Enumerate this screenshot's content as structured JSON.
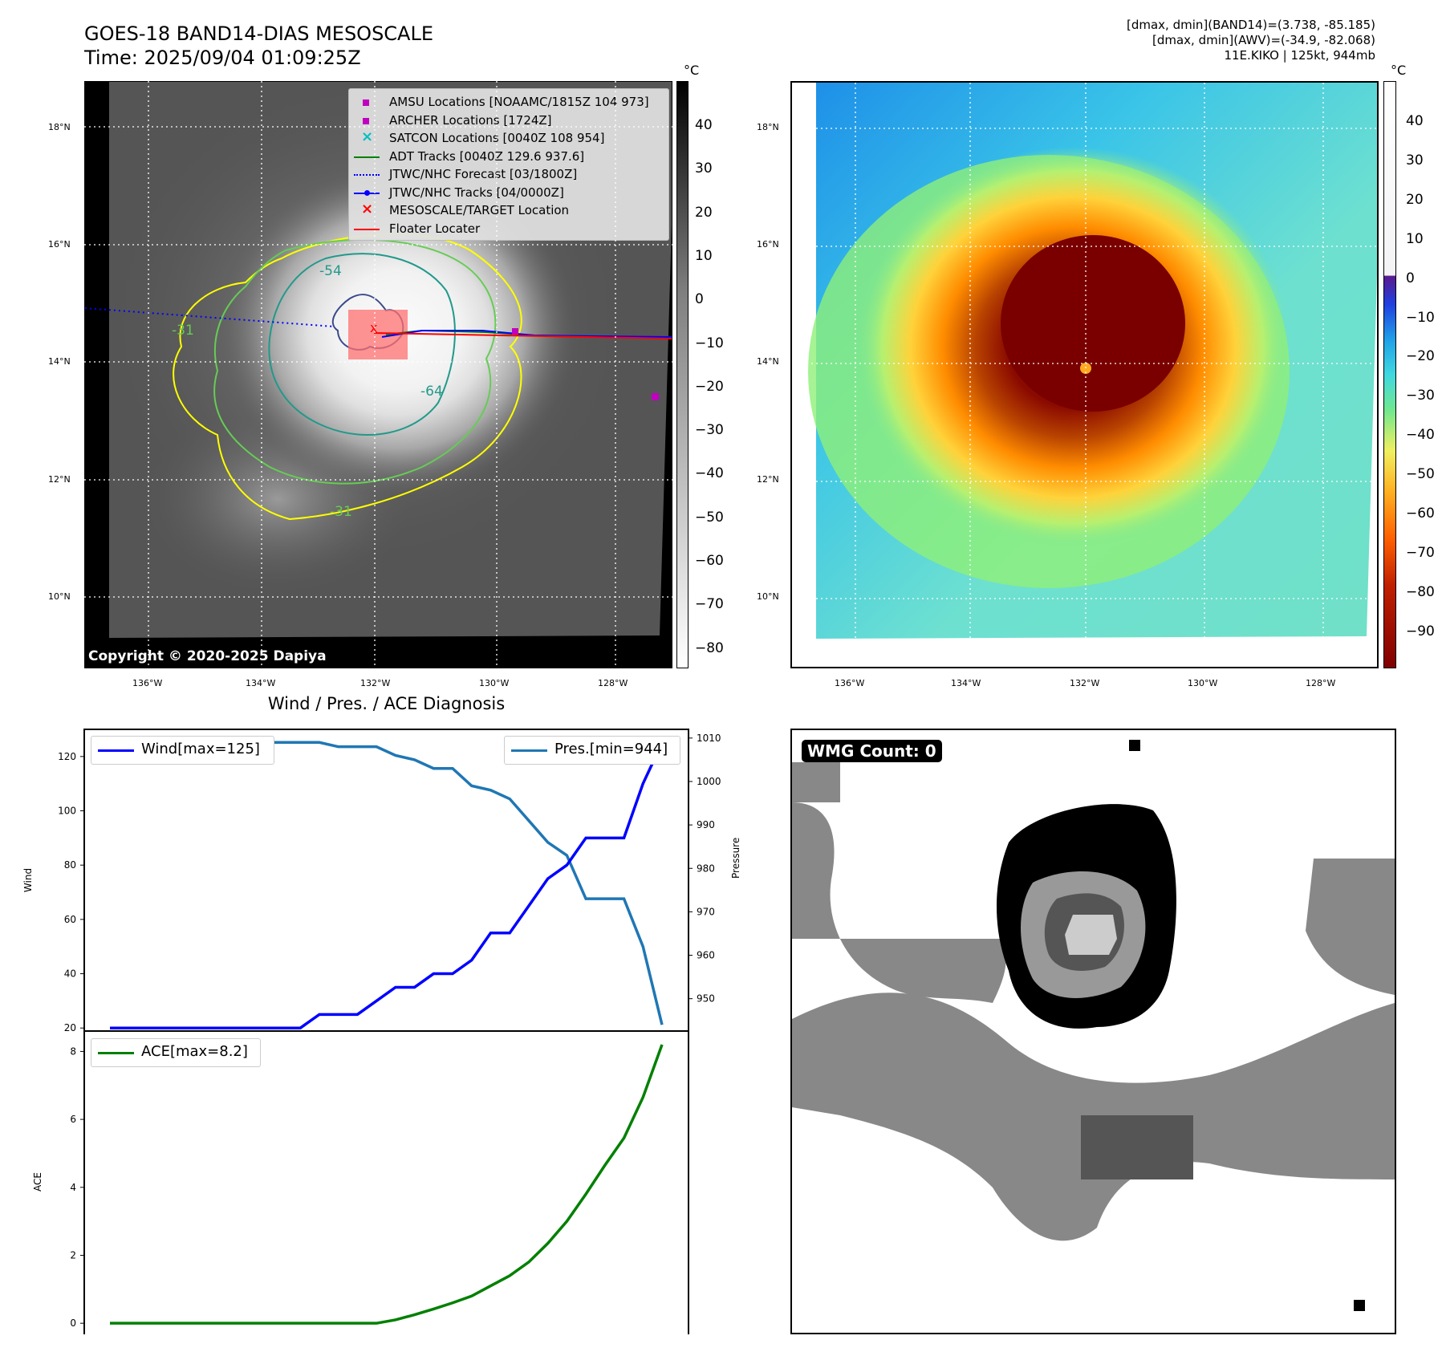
{
  "header": {
    "title_line1": "GOES-18 BAND14-DIAS MESOSCALE",
    "title_line2": "Time: 2025/09/04 01:09:25Z",
    "info_line1": "[dmax, dmin](BAND14)=(3.738, -85.185)",
    "info_line2": "[dmax, dmin](AWV)=(-34.9, -82.068)",
    "info_line3": "11E.KIKO | 125kt, 944mb"
  },
  "map_axes": {
    "lat_labels": [
      "18°N",
      "16°N",
      "14°N",
      "12°N",
      "10°N"
    ],
    "lon_labels": [
      "136°W",
      "134°W",
      "132°W",
      "130°W",
      "128°W"
    ]
  },
  "copyright": "Copyright © 2020-2025 Dapiya",
  "ir_legend": [
    {
      "label": "AMSU Locations [NOAAMC/1815Z 104 973]",
      "marker": "square",
      "color": "#c000c0"
    },
    {
      "label": "ARCHER Locations [1724Z]",
      "marker": "square",
      "color": "#c000c0"
    },
    {
      "label": "SATCON Locations [0040Z 108 954]",
      "marker": "x",
      "color": "#00c0c0"
    },
    {
      "label": "ADT Tracks [0040Z 129.6 937.6]",
      "marker": "line",
      "color": "#008000"
    },
    {
      "label": "JTWC/NHC Forecast [03/1800Z]",
      "marker": "dotted",
      "color": "#0000ff"
    },
    {
      "label": "JTWC/NHC Tracks [04/0000Z]",
      "marker": "line-dot",
      "color": "#0000ff"
    },
    {
      "label": "MESOSCALE/TARGET Location",
      "marker": "x",
      "color": "#ff0000"
    },
    {
      "label": "Floater Locater",
      "marker": "line",
      "color": "#ff0000"
    }
  ],
  "contour_labels": [
    "-54",
    "-31",
    "-64",
    "-31"
  ],
  "colorbar_ir": {
    "unit": "°C",
    "ticks": [
      "40",
      "30",
      "20",
      "10",
      "0",
      "−10",
      "−20",
      "−30",
      "−40",
      "−50",
      "−60",
      "−70",
      "−80"
    ]
  },
  "colorbar_awv": {
    "unit": "°C",
    "ticks": [
      "40",
      "30",
      "20",
      "10",
      "0",
      "−10",
      "−20",
      "−30",
      "−40",
      "−50",
      "−60",
      "−70",
      "−80",
      "−90"
    ]
  },
  "wmg": {
    "label": "WMG Count: 0"
  },
  "chart_data": [
    {
      "type": "line",
      "title": "Wind / Pres. / ACE Diagnosis",
      "ylabel": "Wind",
      "y2label": "Pressure",
      "ylim": [
        18,
        130
      ],
      "y2lim": [
        942,
        1012
      ],
      "yticks": [
        "120",
        "100",
        "80",
        "60",
        "40",
        "20"
      ],
      "y2ticks": [
        "1010",
        "1000",
        "990",
        "980",
        "970",
        "960",
        "950"
      ],
      "legend_left": "Wind[max=125]",
      "legend_right": "Pres.[min=944]",
      "series": [
        {
          "name": "Wind[max=125]",
          "color": "#0000ff",
          "values": [
            20,
            20,
            20,
            20,
            20,
            20,
            20,
            20,
            20,
            20,
            20,
            25,
            25,
            25,
            30,
            35,
            35,
            40,
            40,
            45,
            55,
            55,
            65,
            75,
            80,
            90,
            90,
            90,
            110,
            125
          ]
        },
        {
          "name": "Pres.[min=944]",
          "color": "#1f77b4",
          "values": [
            1009,
            1009,
            1009,
            1009,
            1009,
            1009,
            1009,
            1009,
            1009,
            1009,
            1009,
            1009,
            1008,
            1008,
            1008,
            1006,
            1005,
            1003,
            1003,
            999,
            998,
            996,
            991,
            986,
            983,
            973,
            973,
            973,
            962,
            944
          ]
        }
      ]
    },
    {
      "type": "line",
      "ylabel": "ACE",
      "ylim": [
        -0.35,
        8.6
      ],
      "yticks": [
        "8",
        "6",
        "4",
        "2",
        "0"
      ],
      "legend": "ACE[max=8.2]",
      "series": [
        {
          "name": "ACE[max=8.2]",
          "color": "#008000",
          "values": [
            0,
            0,
            0,
            0,
            0,
            0,
            0,
            0,
            0,
            0,
            0,
            0,
            0,
            0,
            0,
            0.1,
            0.25,
            0.42,
            0.6,
            0.8,
            1.1,
            1.4,
            1.8,
            2.35,
            3.0,
            3.8,
            4.65,
            5.45,
            6.65,
            8.2
          ]
        }
      ]
    }
  ]
}
